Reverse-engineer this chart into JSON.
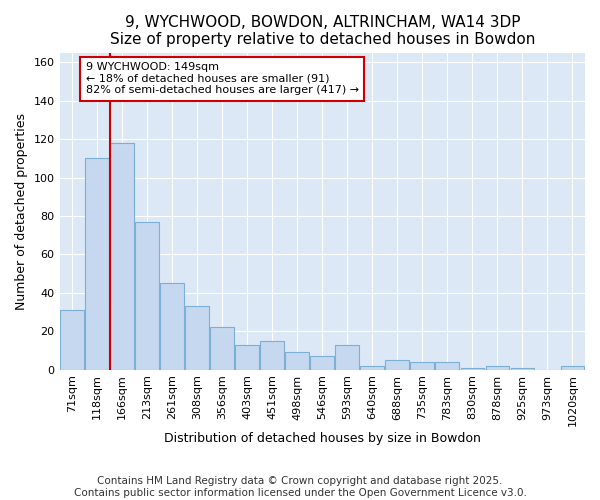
{
  "title": "9, WYCHWOOD, BOWDON, ALTRINCHAM, WA14 3DP",
  "subtitle": "Size of property relative to detached houses in Bowdon",
  "xlabel": "Distribution of detached houses by size in Bowdon",
  "ylabel": "Number of detached properties",
  "categories": [
    "71sqm",
    "118sqm",
    "166sqm",
    "213sqm",
    "261sqm",
    "308sqm",
    "356sqm",
    "403sqm",
    "451sqm",
    "498sqm",
    "546sqm",
    "593sqm",
    "640sqm",
    "688sqm",
    "735sqm",
    "783sqm",
    "830sqm",
    "878sqm",
    "925sqm",
    "973sqm",
    "1020sqm"
  ],
  "values": [
    31,
    110,
    118,
    77,
    45,
    33,
    22,
    13,
    15,
    9,
    7,
    13,
    2,
    5,
    4,
    4,
    1,
    2,
    1,
    0,
    2
  ],
  "bar_color": "#c5d8f0",
  "bar_edge_color": "#7bafd4",
  "vline_x": 1.5,
  "annotation_text": "9 WYCHWOOD: 149sqm\n← 18% of detached houses are smaller (91)\n82% of semi-detached houses are larger (417) →",
  "annotation_box_color": "white",
  "annotation_box_edge_color": "#cc0000",
  "vline_color": "#cc0000",
  "ylim": [
    0,
    165
  ],
  "yticks": [
    0,
    20,
    40,
    60,
    80,
    100,
    120,
    140,
    160
  ],
  "fig_bg_color": "#ffffff",
  "plot_bg_color": "#dce8f5",
  "grid_color": "#ffffff",
  "footer_text": "Contains HM Land Registry data © Crown copyright and database right 2025.\nContains public sector information licensed under the Open Government Licence v3.0.",
  "title_fontsize": 11,
  "xlabel_fontsize": 9,
  "ylabel_fontsize": 9,
  "tick_fontsize": 8,
  "footer_fontsize": 7.5
}
